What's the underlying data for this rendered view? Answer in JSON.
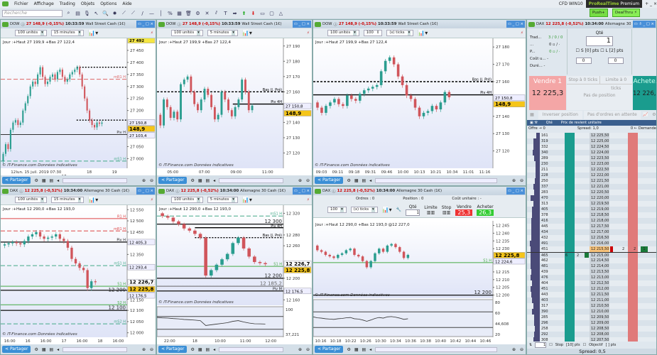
{
  "menu": {
    "items": [
      "Fichier",
      "Affichage",
      "Trading",
      "Objets",
      "Options",
      "Aide"
    ],
    "account": "CFD WIN10",
    "product": "ProRealTime",
    "edition": "Premium"
  },
  "toolbar": {
    "search_placeholder": "Recherche",
    "push_label": "Push+",
    "dealthru_label": "DealThru"
  },
  "colors": {
    "up": "#2a9d8f",
    "down": "#d0555b",
    "header": "#c7d4e0",
    "accent": "#3b8fd6",
    "sell": "#f4a6a6",
    "buy": "#1a9c8e"
  },
  "footer": {
    "share_label": "Partager"
  },
  "panels": [
    {
      "symbol": "DOW",
      "price": "27 148,9 (-0,15%)",
      "time": "10:33:59",
      "name": "Wall Street Cash (1€)",
      "qty": "100 unités",
      "tf": "15 minutes",
      "style": "Heikin-Ashi",
      "info": "Jour :+Haut 27 199,9 +Bas 27 122,4",
      "credit": "© IT-Finance.com Données indicatives",
      "ylim": [
        26960,
        27500
      ],
      "yticks": [
        "27 450",
        "27 400",
        "27 350",
        "27 300",
        "27 250",
        "27 200",
        "27 050",
        "27 000"
      ],
      "ytick_values": [
        27450,
        27400,
        27350,
        27300,
        27250,
        27200,
        27050,
        27000
      ],
      "xticks": [
        "12",
        "lun. 15 juil. 2019 07:30",
        "17",
        "18",
        "19"
      ],
      "closes": [
        26990,
        27020,
        27060,
        27040,
        27120,
        27150,
        27160,
        27140,
        27150,
        27200,
        27230,
        27260,
        27300,
        27320,
        27310,
        27350,
        27380,
        27340,
        27310,
        27320,
        27340,
        27350,
        27330,
        27360,
        27370,
        27340,
        27320,
        27330,
        27350,
        27360,
        27370,
        27380,
        27350,
        27300,
        27250,
        27200,
        27160,
        27140,
        27130,
        27150,
        27145,
        27150
      ],
      "levels": [
        {
          "v": 27380,
          "label": "",
          "color": "#000",
          "dash": "2,2",
          "from": 0.6
        },
        {
          "v": 27330,
          "label": "mR1 H",
          "color": "#d66",
          "dash": "6,3"
        },
        {
          "v": 27160,
          "label": "",
          "color": "#000",
          "dash": "2,2",
          "from": 0.6
        },
        {
          "v": 27100,
          "label": "Piv H",
          "color": "#333",
          "dash": ""
        },
        {
          "v": 26990,
          "label": "mS1 H",
          "color": "#4a8",
          "dash": "6,3"
        }
      ],
      "tags": [
        {
          "v": 27492,
          "text": "27 492",
          "bg": "#f5e642"
        },
        {
          "v": 27150.8,
          "text": "27 150,8",
          "bg": "#eef"
        },
        {
          "v": 27130,
          "text": "148,9",
          "bg": "#f5c518"
        },
        {
          "v": 27103.4,
          "text": "27 103,4",
          "bg": "#eef"
        }
      ]
    },
    {
      "symbol": "DOW",
      "price": "27 148,9 (-0,15%)",
      "time": "10:33:59",
      "name": "Wall Street Cash (1€)",
      "qty": "100 unités",
      "tf": "5 minutes",
      "style": "",
      "info": "Jour :+Haut 27 199,9 +Bas 27 122,4",
      "credit": "© IT-Finance.com Données indicatives",
      "ylim": [
        27110,
        27195
      ],
      "yticks": [
        "27 190",
        "27 180",
        "27 170",
        "27 160",
        "27 140",
        "27 130",
        "27 120"
      ],
      "ytick_values": [
        27190,
        27180,
        27170,
        27160,
        27140,
        27130,
        27120
      ],
      "xticks": [
        "05:00",
        "07:00",
        "09:00",
        "11:00"
      ],
      "closes": [
        27145,
        27138,
        27155,
        27150,
        27143,
        27147,
        27142,
        27165,
        27168,
        27170,
        27160,
        27152,
        27148,
        27155,
        27162,
        27158,
        27150,
        27142,
        27145,
        27160,
        27155,
        27148,
        27144,
        27150,
        27155,
        27168,
        27160,
        27148,
        27151
      ],
      "levels": [
        {
          "v": 27160,
          "label": "Bas (J. Pré)",
          "color": "#000",
          "dash": "3,2"
        },
        {
          "v": 27152,
          "label": "Piv 4H",
          "color": "#000",
          "dash": "",
          "from": 0.6
        }
      ],
      "tags": [
        {
          "v": 27150.8,
          "text": "27 150,8",
          "bg": "#eef"
        },
        {
          "v": 27146,
          "text": "148,9",
          "bg": "#f5c518"
        }
      ]
    },
    {
      "symbol": "DOW",
      "price": "27 148,9 (-0,15%)",
      "time": "10:33:59",
      "name": "Wall Street Cash (1€)",
      "qty": "100 unités",
      "tf": "(x) ticks",
      "ticks": "100",
      "style": "",
      "info": "Jour :+Haut 27 199,9 +Bas 27 122,4",
      "credit": "© IT-Finance.com Données indicatives",
      "ylim": [
        27110,
        27185
      ],
      "yticks": [
        "27 180",
        "27 170",
        "27 160",
        "27 140",
        "27 130",
        "27 120"
      ],
      "ytick_values": [
        27180,
        27170,
        27160,
        27140,
        27130,
        27120
      ],
      "xticks": [
        "09:03",
        "09:11",
        "09:18",
        "09:31",
        "09:46",
        "10:00",
        "10:13",
        "10:21",
        "10:34",
        "11:01",
        "11:16"
      ],
      "closes": [
        27148,
        27145,
        27142,
        27146,
        27148,
        27150,
        27147,
        27146,
        27152,
        27150,
        27149,
        27153,
        27155,
        27156,
        27157,
        27158,
        27166,
        27172,
        27174,
        27170,
        27163,
        27158,
        27152,
        27150,
        27145,
        27140,
        27142,
        27143,
        27146,
        27144,
        27148,
        27154,
        27151
      ],
      "levels": [
        {
          "v": 27160,
          "label": "Bas (J. Pré)",
          "color": "#000",
          "dash": "3,2"
        },
        {
          "v": 27152.4,
          "label": "Piv 4H",
          "color": "#000",
          "dash": ""
        }
      ],
      "tags": [
        {
          "v": 27150.8,
          "text": "27 150,8",
          "bg": "#eef"
        },
        {
          "v": 27147,
          "text": "148,9",
          "bg": "#f5c518"
        }
      ]
    },
    {
      "symbol": "DAX",
      "price": "12 225,8 (-0,52%)",
      "time": "10:34:00",
      "name": "Allemagne 30 Cash (1€)",
      "qty": "100 unités",
      "tf": "15 minutes",
      "style": "",
      "info": "Jour :+Haut 12 290,0 +Bas 12 193,0",
      "credit": "© IT-Finance.com Données indicatives",
      "ylim": [
        11980,
        12570
      ],
      "yticks": [
        "12 550",
        "12 500",
        "12 450",
        "12 350",
        "12 150",
        "12 100",
        "12 050",
        "12 000"
      ],
      "ytick_values": [
        12550,
        12500,
        12450,
        12350,
        12150,
        12100,
        12050,
        12000
      ],
      "xticks": [
        "16:00",
        "16",
        "16:00",
        "17",
        "16:00",
        "18",
        "16:00"
      ],
      "closes": [
        12390,
        12395,
        12400,
        12405,
        12400,
        12395,
        12410,
        12430,
        12440,
        12450,
        12430,
        12420,
        12425,
        12430,
        12440,
        12420,
        12410,
        12380,
        12330,
        12310,
        12290,
        12280,
        12200,
        12230,
        12226
      ],
      "levels": [
        {
          "v": 12510,
          "label": "R1 H",
          "color": "#d44",
          "dash": ""
        },
        {
          "v": 12455,
          "label": "mR1 H",
          "color": "#d44",
          "dash": "6,3"
        },
        {
          "v": 12405.3,
          "label": "Piv H",
          "color": "#222",
          "dash": ""
        },
        {
          "v": 12300,
          "label": "mS1 H",
          "color": "#4a8",
          "dash": "6,3"
        },
        {
          "v": 12208,
          "label": "S1 H",
          "color": "#4a4",
          "dash": ""
        },
        {
          "v": 12190,
          "label": "12 200",
          "color": "#222",
          "dash": ""
        },
        {
          "v": 12125,
          "label": "S2 H",
          "color": "#4a4",
          "dash": ""
        },
        {
          "v": 12100,
          "label": "12 100",
          "color": "#222",
          "dash": ""
        },
        {
          "v": 12040,
          "label": "mS2 H",
          "color": "#4a8",
          "dash": "6,3"
        }
      ],
      "tags": [
        {
          "v": 12405.3,
          "text": "12 405,3",
          "bg": "#eef"
        },
        {
          "v": 12293.4,
          "text": "12 293,4",
          "bg": "#eef"
        },
        {
          "v": 12226.7,
          "text": "12 226,7",
          "bg": "#fff"
        },
        {
          "v": 12195,
          "text": "12 225,8",
          "bg": "#f5c518"
        },
        {
          "v": 12176.5,
          "text": "12 176,5",
          "bg": "#eef"
        }
      ]
    },
    {
      "symbol": "DAX",
      "price": "12 225,8 (-0,52%)",
      "time": "10:34:00",
      "name": "Allemagne 30 Cash (1€)",
      "qty": "100 unités",
      "tf": "5 minutes",
      "style": "",
      "info": "Jour :+Haut 12 290,0 +Bas 12 193,0",
      "credit": "© IT-Finance.com Données indicatives",
      "ylim": [
        12150,
        12335
      ],
      "yticks": [
        "12 340",
        "12 320",
        "12 280",
        "12 260",
        "12 200",
        "12 160"
      ],
      "ytick_values": [
        12340,
        12320,
        12280,
        12260,
        12200,
        12160
      ],
      "xticks": [
        "22:00",
        "18",
        "10:00",
        "11:00",
        "12:00"
      ],
      "closes": [
        12320,
        12315,
        12312,
        12305,
        12300,
        12292,
        12288,
        12282,
        12275,
        12205,
        12215,
        12225,
        12235,
        12245,
        12265,
        12275,
        12255,
        12240,
        12230,
        12228,
        12226
      ],
      "levels": [
        {
          "v": 12315,
          "label": "mS1 H",
          "color": "#4a8",
          "dash": "6,3"
        },
        {
          "v": 12300,
          "label": "12 300",
          "color": "#222",
          "dash": ""
        },
        {
          "v": 12293.4,
          "label": "Piv 4H",
          "color": "#000",
          "dash": "",
          "from": 0.3
        },
        {
          "v": 12275,
          "label": "Bas (J. Pré)",
          "color": "#000",
          "dash": "2,2",
          "from": 0.3
        },
        {
          "v": 12222,
          "label": "S1 H",
          "color": "#4a4",
          "dash": ""
        },
        {
          "v": 12200,
          "label": "12 200",
          "color": "#222",
          "dash": ""
        },
        {
          "v": 12185.2,
          "label": "12 185,2",
          "color": "#666",
          "dash": ""
        },
        {
          "v": 12176.5,
          "label": "Piv M",
          "color": "#222",
          "dash": ""
        }
      ],
      "tags": [
        {
          "v": 12226.7,
          "text": "12 226,7",
          "bg": "#fff"
        },
        {
          "v": 12219,
          "text": "12 225,8",
          "bg": "#f5c518"
        },
        {
          "v": 12176.5,
          "text": "12 176,5",
          "bg": "#eef"
        }
      ],
      "indicator": {
        "ticks": [
          "100",
          "37,221"
        ]
      }
    },
    {
      "symbol": "DAX",
      "price": "12 225,8 (-0,52%)",
      "time": "10:34:00",
      "name": "Allemagne 30 Cash (1€)",
      "qty": "100",
      "tf": "(x) ticks",
      "style": "",
      "info": "Jour :+Haut 12 290,0 +Bas 12 193,0  @12 227,0",
      "credit": "© IT-Finance.com Données indicatives",
      "ylim": [
        12198,
        12248
      ],
      "yticks": [
        "12 245",
        "12 240",
        "12 235",
        "12 230",
        "12 215",
        "12 210",
        "12 205",
        "12 200"
      ],
      "ytick_values": [
        12245,
        12240,
        12235,
        12230,
        12215,
        12210,
        12205,
        12200
      ],
      "xticks": [
        "10:16",
        "10:18",
        "10:22",
        "10:26",
        "10:30",
        "10:34",
        "10:36",
        "10:38",
        "10:40",
        "10:42",
        "10:44",
        "10:46"
      ],
      "closes": [
        12232,
        12229,
        12228,
        12226,
        12225,
        12224,
        12226,
        12227,
        12229,
        12230,
        12226,
        12225,
        12222,
        12218,
        12222,
        12227,
        12230,
        12228,
        12232,
        12233,
        12231,
        12228,
        12224,
        12226
      ],
      "levels": [
        {
          "v": 12221,
          "label": "S1 H",
          "color": "#4a4",
          "dash": ""
        },
        {
          "v": 12200,
          "label": "12 200",
          "color": "#222",
          "dash": ""
        }
      ],
      "tags": [
        {
          "v": 12225.8,
          "text": "12 225,8",
          "bg": "#f5c518"
        },
        {
          "v": 12224.6,
          "text": "12 224,6",
          "bg": "#eef"
        }
      ],
      "indicator": {
        "ticks": [
          "80",
          "60",
          "44,608",
          "20"
        ]
      },
      "order_ticket": {
        "orders_label": "Ordres : 0",
        "position_label": "Position : 0",
        "cost_label": "Coût unitaire : -",
        "qty_label": "Qté",
        "qty": "1",
        "limit_label": "Limite",
        "stop_label": "Stop",
        "sell_label": "Vendre",
        "buy_label": "Acheter",
        "sell_price": "25,3",
        "buy_price": "26,3",
        "s_label": "S",
        "l_label": "L",
        "pts": "pts"
      }
    }
  ],
  "dealer": {
    "symbol": "DAX",
    "price": "12 225,8 (-0,52%)",
    "time": "10:34:00",
    "name": "Allemagne 30",
    "trades_label": "Trad...",
    "trades": "3 / 0 / 0",
    "qty_label": "Qté",
    "qty": "1",
    "s_label": "S",
    "l_label": "L",
    "pts": "pts",
    "stop_zero": "0",
    "limit_zero": "0",
    "sell_label": "Vendre 1",
    "sell_price": "12 225,3",
    "buy_label": "Achete.",
    "buy_price": "12 226,3",
    "stop_ticks": "Stop à 0 ticks",
    "limit_ticks": "Limite à 0 ticks",
    "no_position": "Pas de position",
    "reverse": "Inverser position",
    "no_orders": "Pas d'ordres en attente",
    "cost_label": "Coût u...",
    "dur_label": "Duré...",
    "col_qty": "Qté",
    "col_price": "Prix de revient unitaire",
    "offer_label": "Offre",
    "offer": "0",
    "spread": "Spread: 1,0",
    "demand": "0",
    "demand_label": "Demande",
    "stop_label": "Stop",
    "objective_label": "Objectif",
    "spread_bottom": "Spread: 0,5",
    "book": {
      "last_price": "12 215,50",
      "prices": [
        "12 225,50",
        "12 225,00",
        "12 224,50",
        "12 224,00",
        "12 223,50",
        "12 223,00",
        "12 222,50",
        "12 222,00",
        "12 221,50",
        "12 221,00",
        "12 220,50",
        "12 220,00",
        "12 219,50",
        "12 219,00",
        "12 218,50",
        "12 218,00",
        "12 217,50",
        "12 217,00",
        "12 216,50",
        "12 216,00",
        "12 215,50",
        "12 215,00",
        "12 214,50",
        "12 214,00",
        "12 213,50",
        "12 213,00",
        "12 212,50",
        "12 212,00",
        "12 211,50",
        "12 211,00",
        "12 210,50",
        "12 210,00",
        "12 209,50",
        "12 209,00",
        "12 208,50",
        "12 208,00",
        "12 207,50"
      ],
      "offers": [
        161,
        319,
        332,
        340,
        289,
        230,
        211,
        228,
        250,
        337,
        283,
        470,
        313,
        405,
        378,
        416,
        445,
        434,
        432,
        491,
        451,
        465,
        462,
        481,
        439,
        476,
        404,
        451,
        443,
        403,
        317,
        390,
        285,
        296,
        258,
        292,
        308
      ],
      "marks": {
        "bid_qty": "6",
        "bid_vol": "2",
        "ask_vol": "2",
        "ask_qty": "2",
        "ask_own": "1"
      }
    }
  }
}
